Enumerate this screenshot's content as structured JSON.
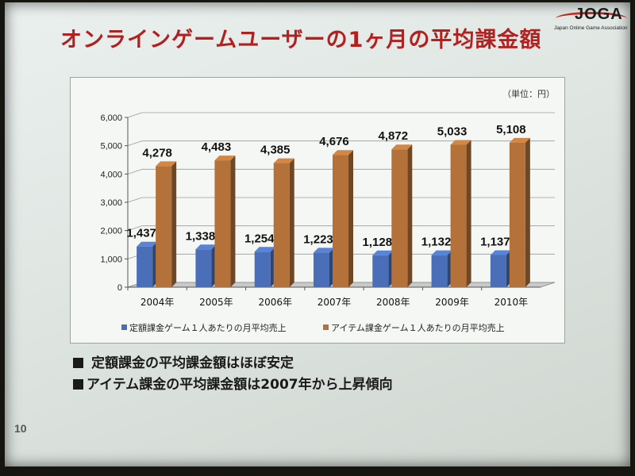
{
  "slide": {
    "title": "オンラインゲームユーザーの1ヶ月の平均課金額",
    "logo_text": "JOGA",
    "logo_subtext": "Japan Online Game Association",
    "bullets": [
      "定額課金の平均課金額はほぼ安定",
      "アイテム課金の平均課金額は2007年から上昇傾向"
    ],
    "page_number": "10"
  },
  "colors": {
    "series1": "#4a6fb8",
    "series2": "#b4723a",
    "title": "#b32020"
  },
  "chart_data": {
    "type": "bar",
    "unit_label": "（単位：円）",
    "categories": [
      "2004年",
      "2005年",
      "2006年",
      "2007年",
      "2008年",
      "2009年",
      "2010年"
    ],
    "series": [
      {
        "name": "定額課金ゲーム１人あたりの月平均売上",
        "values": [
          1437,
          1338,
          1254,
          1223,
          1128,
          1132,
          1137
        ],
        "labels": [
          "1,437",
          "1,338",
          "1,254",
          "1,223",
          "1,128",
          "1,132",
          "1,137"
        ]
      },
      {
        "name": "アイテム課金ゲーム１人あたりの月平均売上",
        "values": [
          4278,
          4483,
          4385,
          4676,
          4872,
          5033,
          5108
        ],
        "labels": [
          "4,278",
          "4,483",
          "4,385",
          "4,676",
          "4,872",
          "5,033",
          "5,108"
        ]
      }
    ],
    "yticks": [
      "0",
      "1,000",
      "2,000",
      "3,000",
      "4,000",
      "5,000",
      "6,000"
    ],
    "ylim": [
      0,
      6000
    ],
    "grid": true,
    "legend_position": "bottom"
  }
}
